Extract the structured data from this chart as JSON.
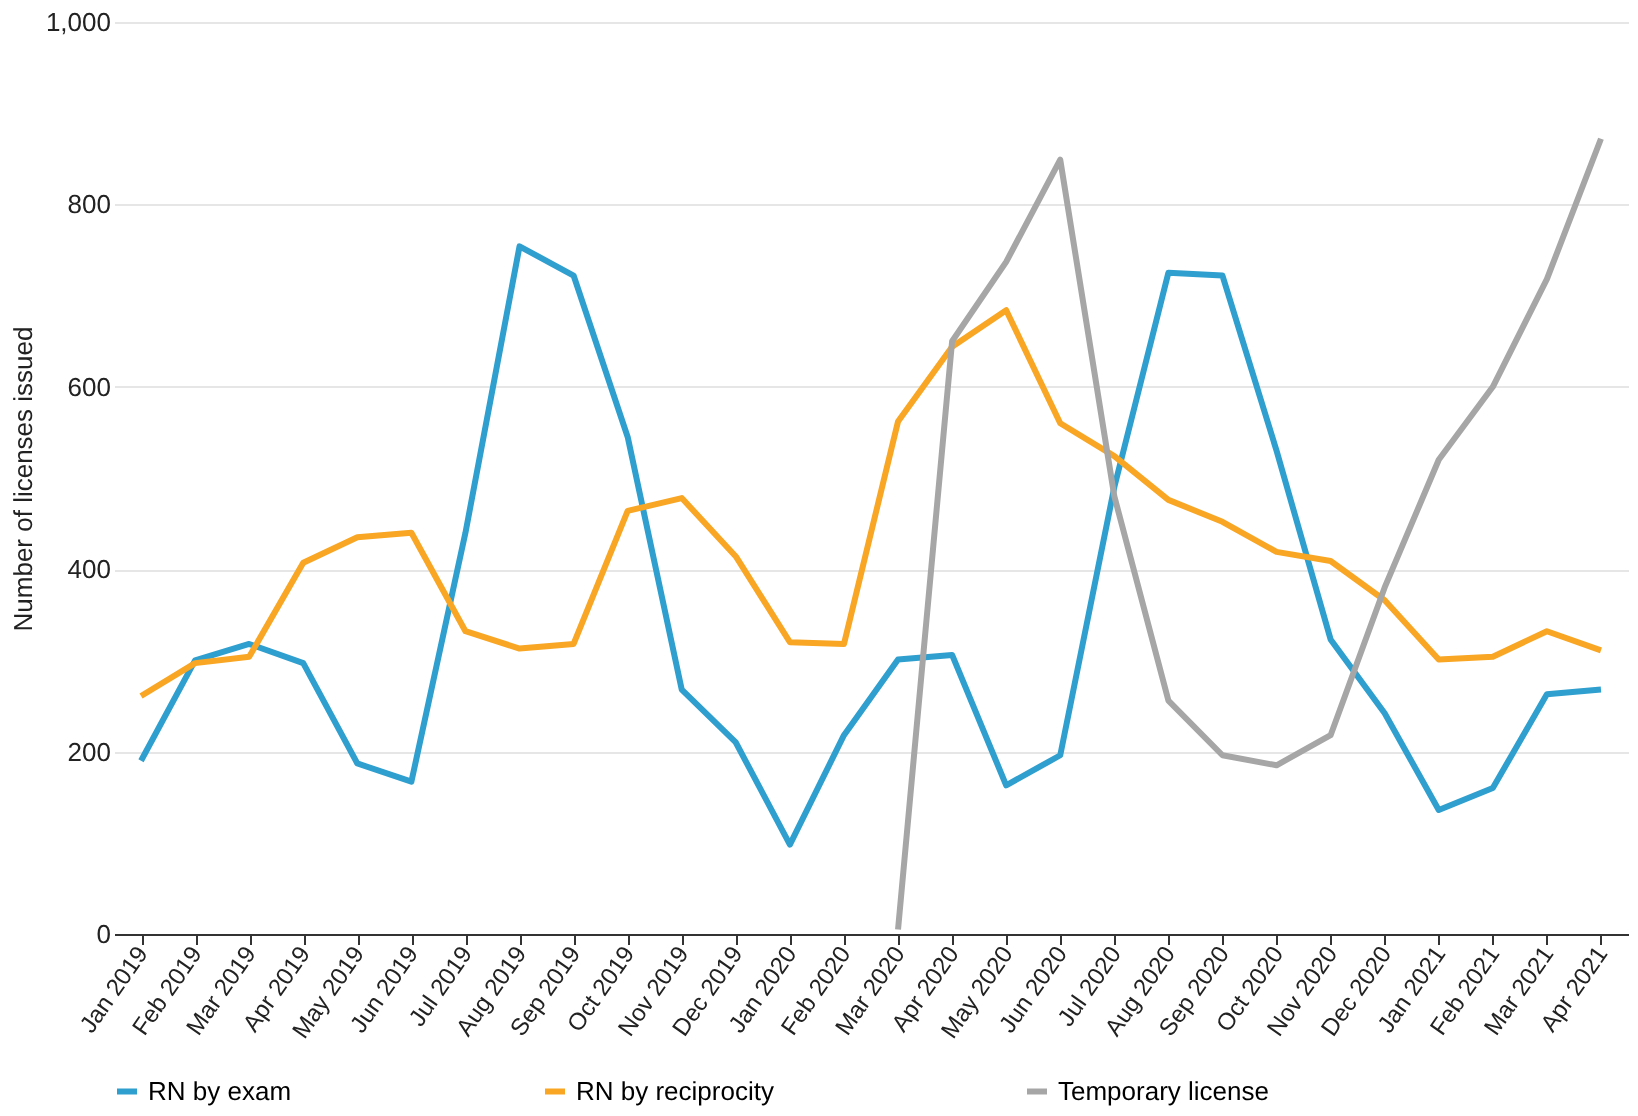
{
  "chart_data": {
    "type": "line",
    "ylabel": "Number of licenses issued",
    "categories": [
      "Jan 2019",
      "Feb 2019",
      "Mar 2019",
      "Apr 2019",
      "May 2019",
      "Jun 2019",
      "Jul 2019",
      "Aug 2019",
      "Sep 2019",
      "Oct 2019",
      "Nov 2019",
      "Dec 2019",
      "Jan 2020",
      "Feb 2020",
      "Mar 2020",
      "Apr 2020",
      "May 2020",
      "Jun 2020",
      "Jul 2020",
      "Aug 2020",
      "Sep 2020",
      "Oct 2020",
      "Nov 2020",
      "Dec 2020",
      "Jan 2021",
      "Feb 2021",
      "Mar 2021",
      "Apr 2021"
    ],
    "series": [
      {
        "name": "RN by exam",
        "color": "#2e9fce",
        "values": [
          190,
          300,
          318,
          297,
          187,
          167,
          440,
          754,
          722,
          545,
          268,
          210,
          98,
          218,
          301,
          306,
          163,
          196,
          490,
          725,
          722,
          530,
          323,
          242,
          136,
          160,
          263,
          268
        ]
      },
      {
        "name": "RN by reciprocity",
        "color": "#f8a623",
        "values": [
          261,
          297,
          304,
          407,
          435,
          440,
          332,
          313,
          318,
          464,
          478,
          414,
          320,
          318,
          562,
          644,
          684,
          560,
          524,
          476,
          452,
          419,
          409,
          366,
          301,
          304,
          332,
          311
        ]
      },
      {
        "name": "Temporary license",
        "color": "#a6a6a6",
        "values": [
          null,
          null,
          null,
          null,
          null,
          null,
          null,
          null,
          null,
          null,
          null,
          null,
          null,
          null,
          5,
          650,
          737,
          849,
          480,
          256,
          196,
          185,
          218,
          380,
          520,
          600,
          718,
          872
        ]
      }
    ],
    "ylim": [
      0,
      1000
    ],
    "yticks": [
      0,
      200,
      400,
      600,
      800,
      {
        "value": 1000,
        "label": "1,000"
      }
    ],
    "grid": "y",
    "legend": "bottom",
    "line_style": "solid",
    "marker": "none"
  }
}
